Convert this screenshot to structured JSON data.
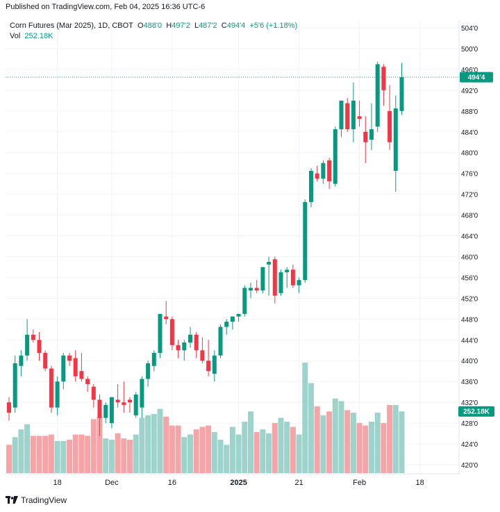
{
  "header": {
    "published": "Published on TradingView.com, Feb 04, 2025 16:36 UTC-6"
  },
  "legend": {
    "symbol": "Corn Futures (Mar 2025), 1D, CBOT",
    "o_label": "O",
    "o_value": "488'0",
    "h_label": "H",
    "h_value": "497'2",
    "l_label": "L",
    "l_value": "487'2",
    "c_label": "C",
    "c_value": "494'4",
    "change": "+5'6 (+1.18%)",
    "vol_label": "Vol",
    "vol_value": "252.18K"
  },
  "footer": {
    "brand": "TradingView"
  },
  "colors": {
    "up": "#089981",
    "down": "#f23645",
    "vol_up": "#9ed3cb",
    "vol_down": "#f5a5a8"
  },
  "chart_data": {
    "type": "candlestick",
    "price_axis": {
      "ticks": [
        "420'0",
        "424'0",
        "428'0",
        "432'0",
        "436'0",
        "440'0",
        "444'0",
        "448'0",
        "452'0",
        "456'0",
        "460'0",
        "464'0",
        "468'0",
        "472'0",
        "476'0",
        "480'0",
        "484'0",
        "488'0",
        "492'0",
        "496'0",
        "500'0",
        "504'0"
      ],
      "range": [
        418,
        505
      ]
    },
    "time_axis": {
      "labels": [
        "18",
        "Dec",
        "16",
        "2025",
        "21",
        "Feb",
        "18"
      ]
    },
    "last_price_label": "494'4",
    "last_volume_label": "252.18K",
    "candles": [
      {
        "o": 432.0,
        "h": 433.0,
        "l": 428.5,
        "c": 430.0,
        "v": 22
      },
      {
        "o": 431.0,
        "h": 441.0,
        "l": 430.0,
        "c": 439.5,
        "v": 28
      },
      {
        "o": 439.0,
        "h": 442.0,
        "l": 437.0,
        "c": 441.0,
        "v": 34
      },
      {
        "o": 441.0,
        "h": 448.0,
        "l": 440.0,
        "c": 445.0,
        "v": 38
      },
      {
        "o": 445.0,
        "h": 446.0,
        "l": 443.5,
        "c": 444.0,
        "v": 29
      },
      {
        "o": 444.0,
        "h": 445.5,
        "l": 440.0,
        "c": 441.5,
        "v": 29
      },
      {
        "o": 441.5,
        "h": 442.0,
        "l": 438.0,
        "c": 438.5,
        "v": 29
      },
      {
        "o": 438.5,
        "h": 439.0,
        "l": 430.0,
        "c": 431.0,
        "v": 30
      },
      {
        "o": 431.0,
        "h": 437.0,
        "l": 429.5,
        "c": 436.0,
        "v": 25
      },
      {
        "o": 436.0,
        "h": 441.5,
        "l": 434.5,
        "c": 441.0,
        "v": 25
      },
      {
        "o": 441.0,
        "h": 441.5,
        "l": 439.0,
        "c": 440.0,
        "v": 26
      },
      {
        "o": 440.5,
        "h": 442.0,
        "l": 436.0,
        "c": 437.0,
        "v": 30
      },
      {
        "o": 438.0,
        "h": 441.5,
        "l": 436.0,
        "c": 436.5,
        "v": 30
      },
      {
        "o": 436.5,
        "h": 437.0,
        "l": 434.0,
        "c": 435.5,
        "v": 29
      },
      {
        "o": 435.0,
        "h": 435.5,
        "l": 431.0,
        "c": 432.5,
        "v": 42
      },
      {
        "o": 432.5,
        "h": 433.5,
        "l": 425.5,
        "c": 429.0,
        "v": 44
      },
      {
        "o": 429.0,
        "h": 432.0,
        "l": 428.0,
        "c": 431.5,
        "v": 27
      },
      {
        "o": 428.0,
        "h": 433.0,
        "l": 427.0,
        "c": 433.0,
        "v": 26
      },
      {
        "o": 432.5,
        "h": 435.5,
        "l": 431.0,
        "c": 432.0,
        "v": 31
      },
      {
        "o": 432.0,
        "h": 436.0,
        "l": 430.0,
        "c": 431.5,
        "v": 27
      },
      {
        "o": 432.5,
        "h": 433.0,
        "l": 430.0,
        "c": 432.0,
        "v": 26
      },
      {
        "o": 429.5,
        "h": 434.0,
        "l": 429.0,
        "c": 433.5,
        "v": 30
      },
      {
        "o": 431.0,
        "h": 437.0,
        "l": 429.0,
        "c": 436.5,
        "v": 43
      },
      {
        "o": 436.5,
        "h": 440.0,
        "l": 435.0,
        "c": 439.5,
        "v": 45
      },
      {
        "o": 439.0,
        "h": 442.0,
        "l": 438.0,
        "c": 441.5,
        "v": 46
      },
      {
        "o": 441.5,
        "h": 449.0,
        "l": 440.5,
        "c": 449.0,
        "v": 50
      },
      {
        "o": 448.5,
        "h": 451.5,
        "l": 447.0,
        "c": 448.0,
        "v": 44
      },
      {
        "o": 448.0,
        "h": 448.5,
        "l": 442.0,
        "c": 443.0,
        "v": 37
      },
      {
        "o": 443.0,
        "h": 444.0,
        "l": 440.5,
        "c": 442.0,
        "v": 37
      },
      {
        "o": 442.0,
        "h": 444.0,
        "l": 440.0,
        "c": 443.5,
        "v": 28
      },
      {
        "o": 443.5,
        "h": 446.5,
        "l": 442.5,
        "c": 445.0,
        "v": 30
      },
      {
        "o": 445.0,
        "h": 445.5,
        "l": 440.5,
        "c": 442.0,
        "v": 34
      },
      {
        "o": 442.0,
        "h": 444.5,
        "l": 439.5,
        "c": 440.0,
        "v": 36
      },
      {
        "o": 440.0,
        "h": 444.0,
        "l": 437.0,
        "c": 438.0,
        "v": 37
      },
      {
        "o": 437.5,
        "h": 442.0,
        "l": 436.0,
        "c": 441.0,
        "v": 32
      },
      {
        "o": 441.0,
        "h": 447.0,
        "l": 440.5,
        "c": 446.5,
        "v": 26
      },
      {
        "o": 446.5,
        "h": 448.0,
        "l": 445.0,
        "c": 447.5,
        "v": 22
      },
      {
        "o": 447.5,
        "h": 448.0,
        "l": 446.0,
        "c": 448.5,
        "v": 36
      },
      {
        "o": 448.5,
        "h": 449.0,
        "l": 447.5,
        "c": 449.0,
        "v": 30
      },
      {
        "o": 449.0,
        "h": 454.5,
        "l": 448.5,
        "c": 454.0,
        "v": 40
      },
      {
        "o": 453.5,
        "h": 455.0,
        "l": 452.0,
        "c": 454.0,
        "v": 48
      },
      {
        "o": 454.0,
        "h": 455.5,
        "l": 453.0,
        "c": 453.5,
        "v": 32
      },
      {
        "o": 453.5,
        "h": 458.0,
        "l": 453.0,
        "c": 458.0,
        "v": 34
      },
      {
        "o": 458.5,
        "h": 460.0,
        "l": 452.5,
        "c": 459.0,
        "v": 31
      },
      {
        "o": 459.5,
        "h": 460.0,
        "l": 451.0,
        "c": 452.5,
        "v": 39
      },
      {
        "o": 453.0,
        "h": 457.5,
        "l": 452.5,
        "c": 457.0,
        "v": 43
      },
      {
        "o": 457.0,
        "h": 458.0,
        "l": 454.0,
        "c": 457.5,
        "v": 40
      },
      {
        "o": 457.5,
        "h": 458.5,
        "l": 454.0,
        "c": 454.5,
        "v": 36
      },
      {
        "o": 454.5,
        "h": 456.0,
        "l": 453.0,
        "c": 455.5,
        "v": 30
      },
      {
        "o": 455.5,
        "h": 471.0,
        "l": 455.0,
        "c": 470.5,
        "v": 86
      },
      {
        "o": 470.5,
        "h": 477.0,
        "l": 469.5,
        "c": 476.5,
        "v": 70
      },
      {
        "o": 476.0,
        "h": 477.5,
        "l": 474.5,
        "c": 475.0,
        "v": 52
      },
      {
        "o": 475.0,
        "h": 478.5,
        "l": 474.0,
        "c": 478.0,
        "v": 45
      },
      {
        "o": 478.5,
        "h": 479.0,
        "l": 473.0,
        "c": 474.5,
        "v": 48
      },
      {
        "o": 474.0,
        "h": 485.0,
        "l": 473.5,
        "c": 484.5,
        "v": 58
      },
      {
        "o": 484.5,
        "h": 490.0,
        "l": 483.0,
        "c": 490.0,
        "v": 56
      },
      {
        "o": 489.5,
        "h": 490.5,
        "l": 484.0,
        "c": 484.5,
        "v": 49
      },
      {
        "o": 484.5,
        "h": 493.5,
        "l": 482.0,
        "c": 490.0,
        "v": 47
      },
      {
        "o": 487.0,
        "h": 490.0,
        "l": 485.0,
        "c": 486.5,
        "v": 39
      },
      {
        "o": 484.0,
        "h": 487.0,
        "l": 478.0,
        "c": 482.0,
        "v": 37
      },
      {
        "o": 482.5,
        "h": 489.5,
        "l": 480.5,
        "c": 484.5,
        "v": 40
      },
      {
        "o": 485.0,
        "h": 497.5,
        "l": 484.0,
        "c": 497.0,
        "v": 47
      },
      {
        "o": 496.5,
        "h": 497.0,
        "l": 489.0,
        "c": 492.0,
        "v": 39
      },
      {
        "o": 488.0,
        "h": 493.0,
        "l": 480.5,
        "c": 482.0,
        "v": 53
      },
      {
        "o": 476.5,
        "h": 491.0,
        "l": 472.5,
        "c": 488.5,
        "v": 53
      },
      {
        "o": 488.0,
        "h": 497.25,
        "l": 487.25,
        "c": 494.5,
        "v": 48
      }
    ]
  }
}
